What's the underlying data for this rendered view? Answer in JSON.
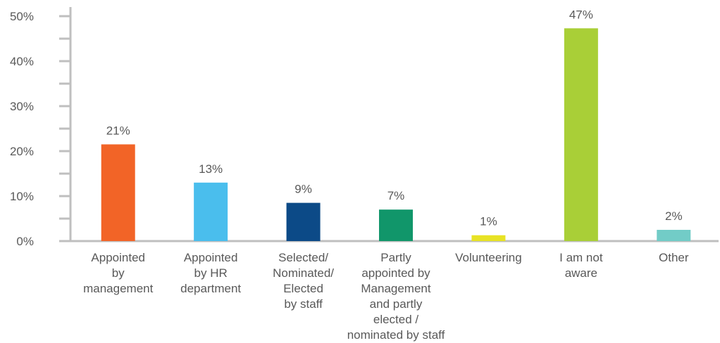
{
  "chart_data": {
    "type": "bar",
    "categories": [
      [
        "Appointed",
        "by",
        "management"
      ],
      [
        "Appointed",
        "by HR",
        "department"
      ],
      [
        "Selected/",
        "Nominated/",
        "Elected",
        "by staff"
      ],
      [
        "Partly",
        "appointed by",
        "Management",
        "and partly",
        "elected /",
        "nominated by staff"
      ],
      [
        "Volunteering"
      ],
      [
        "I am not",
        "aware"
      ],
      [
        "Other"
      ]
    ],
    "values": [
      21.5,
      13,
      8.5,
      7,
      1.3,
      47.3,
      2.5
    ],
    "data_labels": [
      "21%",
      "13%",
      "9%",
      "7%",
      "1%",
      "47%",
      "2%"
    ],
    "colors": [
      "#F26427",
      "#4ABEED",
      "#0C4A87",
      "#11966A",
      "#E8E325",
      "#A9CF37",
      "#72CCC7"
    ],
    "ylim": [
      0,
      50
    ],
    "yticks": [
      0,
      10,
      20,
      30,
      40,
      50
    ],
    "ytick_labels": [
      "0%",
      "10%",
      "20%",
      "30%",
      "40%",
      "50%"
    ],
    "minor_ticks": true,
    "grid": false,
    "axis_color": "#BFBFBF",
    "text_color": "#595959"
  }
}
